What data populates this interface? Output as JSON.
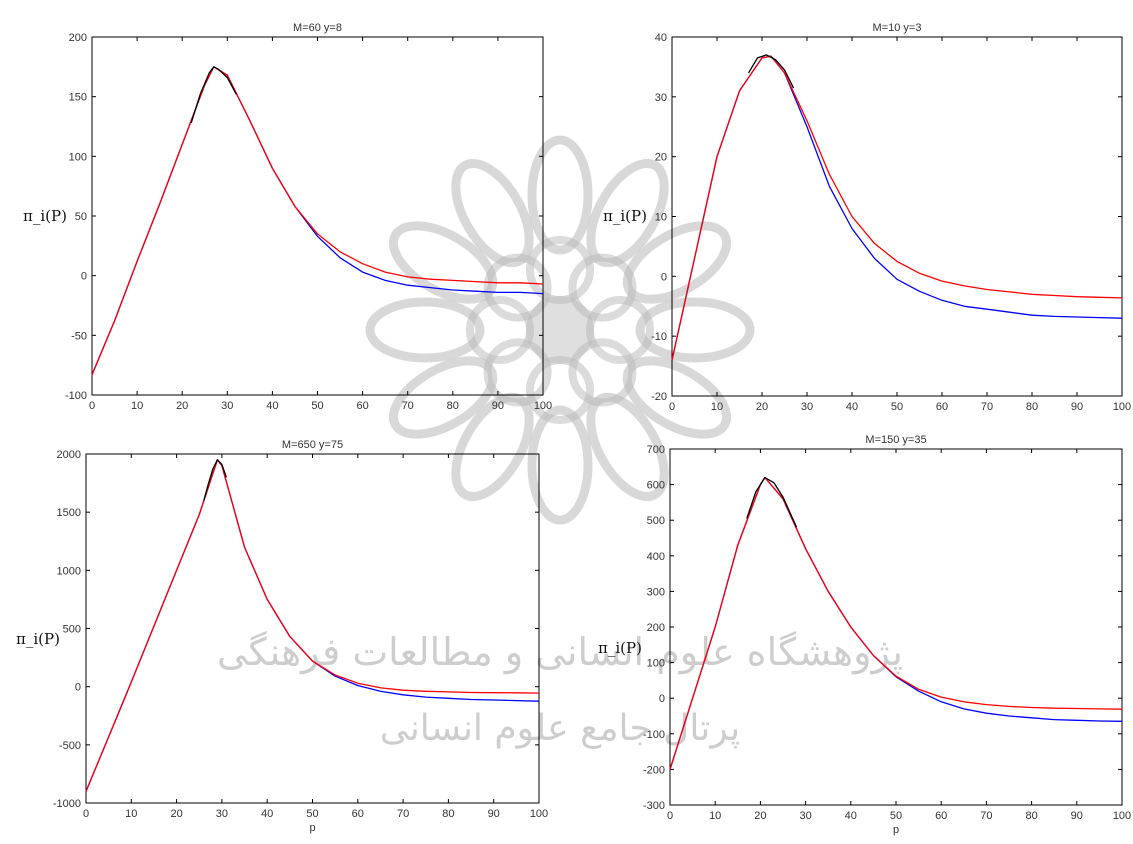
{
  "chart_data": [
    {
      "type": "line",
      "title": "M=60  y=8",
      "ylabel": "π_i(P)",
      "xlabel": "",
      "xlim": [
        0,
        100
      ],
      "ylim": [
        -100,
        200
      ],
      "xticks": [
        0,
        10,
        20,
        30,
        40,
        50,
        60,
        70,
        80,
        90,
        100
      ],
      "yticks": [
        -100,
        -50,
        0,
        50,
        100,
        150,
        200
      ],
      "series": [
        {
          "color": "#0000ff",
          "x": [
            0,
            5,
            10,
            15,
            20,
            25,
            27,
            30,
            35,
            40,
            45,
            50,
            55,
            60,
            65,
            70,
            75,
            80,
            85,
            90,
            95,
            100
          ],
          "y": [
            -83,
            -38,
            12,
            60,
            110,
            160,
            175,
            168,
            130,
            90,
            58,
            33,
            15,
            3,
            -4,
            -8,
            -10,
            -12,
            -13,
            -14,
            -14,
            -15
          ]
        },
        {
          "color": "#ff0000",
          "x": [
            0,
            5,
            10,
            15,
            20,
            25,
            27,
            30,
            35,
            40,
            45,
            50,
            55,
            60,
            65,
            70,
            75,
            80,
            85,
            90,
            95,
            100
          ],
          "y": [
            -83,
            -38,
            12,
            60,
            110,
            160,
            175,
            168,
            130,
            90,
            58,
            35,
            20,
            10,
            3,
            -1,
            -3,
            -4,
            -5,
            -6,
            -6,
            -7
          ]
        },
        {
          "color": "#000000",
          "x": [
            22,
            24,
            26,
            27,
            28,
            30,
            32
          ],
          "y": [
            128,
            152,
            170,
            175,
            173,
            166,
            152
          ]
        }
      ]
    },
    {
      "type": "line",
      "title": "M=10  y=3",
      "ylabel": "π_i(P)",
      "xlabel": "",
      "xlim": [
        0,
        100
      ],
      "ylim": [
        -20,
        40
      ],
      "xticks": [
        0,
        10,
        20,
        30,
        40,
        50,
        60,
        70,
        80,
        90,
        100
      ],
      "yticks": [
        -20,
        -10,
        0,
        10,
        20,
        30,
        40
      ],
      "series": [
        {
          "color": "#0000ff",
          "x": [
            0,
            5,
            10,
            15,
            20,
            22,
            25,
            30,
            35,
            40,
            45,
            50,
            55,
            60,
            65,
            70,
            75,
            80,
            85,
            90,
            95,
            100
          ],
          "y": [
            -14,
            3,
            20,
            31,
            36.5,
            36.8,
            34,
            25,
            15,
            8,
            3,
            -0.5,
            -2.5,
            -4,
            -5,
            -5.5,
            -6,
            -6.5,
            -6.7,
            -6.8,
            -6.9,
            -7
          ]
        },
        {
          "color": "#ff0000",
          "x": [
            0,
            5,
            10,
            15,
            20,
            22,
            25,
            30,
            35,
            40,
            45,
            50,
            55,
            60,
            65,
            70,
            75,
            80,
            85,
            90,
            95,
            100
          ],
          "y": [
            -14,
            3,
            20,
            31,
            36.5,
            36.8,
            34,
            26,
            17,
            10,
            5.5,
            2.5,
            0.5,
            -0.8,
            -1.6,
            -2.2,
            -2.6,
            -3,
            -3.2,
            -3.4,
            -3.5,
            -3.6
          ]
        },
        {
          "color": "#000000",
          "x": [
            17,
            19,
            21,
            23,
            25,
            27
          ],
          "y": [
            34,
            36.5,
            37,
            36.2,
            34.5,
            31.5
          ]
        }
      ]
    },
    {
      "type": "line",
      "title": "M=650  y=75",
      "ylabel": "π_i(P)",
      "xlabel": "p",
      "xlim": [
        0,
        100
      ],
      "ylim": [
        -1000,
        2000
      ],
      "xticks": [
        0,
        10,
        20,
        30,
        40,
        50,
        60,
        70,
        80,
        90,
        100
      ],
      "yticks": [
        -1000,
        -500,
        0,
        500,
        1000,
        1500,
        2000
      ],
      "series": [
        {
          "color": "#0000ff",
          "x": [
            0,
            5,
            10,
            15,
            20,
            25,
            29,
            30,
            35,
            40,
            45,
            50,
            55,
            60,
            65,
            70,
            75,
            80,
            85,
            90,
            95,
            100
          ],
          "y": [
            -900,
            -430,
            40,
            520,
            1000,
            1480,
            1950,
            1900,
            1200,
            750,
            430,
            220,
            90,
            10,
            -40,
            -70,
            -90,
            -100,
            -110,
            -115,
            -120,
            -125
          ]
        },
        {
          "color": "#ff0000",
          "x": [
            0,
            5,
            10,
            15,
            20,
            25,
            29,
            30,
            35,
            40,
            45,
            50,
            55,
            60,
            65,
            70,
            75,
            80,
            85,
            90,
            95,
            100
          ],
          "y": [
            -900,
            -430,
            40,
            520,
            1000,
            1480,
            1950,
            1900,
            1200,
            750,
            430,
            220,
            100,
            30,
            -10,
            -30,
            -40,
            -45,
            -50,
            -52,
            -53,
            -55
          ]
        },
        {
          "color": "#000000",
          "x": [
            26,
            27,
            28,
            29,
            30,
            31
          ],
          "y": [
            1600,
            1740,
            1870,
            1950,
            1910,
            1800
          ]
        }
      ]
    },
    {
      "type": "line",
      "title": "M=150  y=35",
      "ylabel": "π_i(P)",
      "xlabel": "p",
      "xlim": [
        0,
        100
      ],
      "ylim": [
        -300,
        700
      ],
      "xticks": [
        0,
        10,
        20,
        30,
        40,
        50,
        60,
        70,
        80,
        90,
        100
      ],
      "yticks": [
        -300,
        -200,
        -100,
        0,
        100,
        200,
        300,
        400,
        500,
        600,
        700
      ],
      "series": [
        {
          "color": "#0000ff",
          "x": [
            0,
            5,
            10,
            15,
            20,
            21,
            25,
            30,
            35,
            40,
            45,
            50,
            55,
            60,
            65,
            70,
            75,
            80,
            85,
            90,
            95,
            100
          ],
          "y": [
            -200,
            0,
            200,
            430,
            600,
            620,
            560,
            420,
            300,
            200,
            120,
            60,
            20,
            -10,
            -30,
            -42,
            -50,
            -55,
            -60,
            -62,
            -64,
            -65
          ]
        },
        {
          "color": "#ff0000",
          "x": [
            0,
            5,
            10,
            15,
            20,
            21,
            25,
            30,
            35,
            40,
            45,
            50,
            55,
            60,
            65,
            70,
            75,
            80,
            85,
            90,
            95,
            100
          ],
          "y": [
            -200,
            0,
            200,
            430,
            600,
            620,
            560,
            420,
            300,
            200,
            120,
            62,
            25,
            3,
            -10,
            -18,
            -23,
            -26,
            -28,
            -29,
            -30,
            -31
          ]
        },
        {
          "color": "#000000",
          "x": [
            17,
            19,
            21,
            23,
            25,
            28
          ],
          "y": [
            505,
            580,
            620,
            605,
            565,
            480
          ]
        }
      ]
    }
  ],
  "watermark": {
    "line1": "پژوهشگاه علوم انسانی و مطالعات فرهنگی",
    "line2": "پرتال جامع علوم انسانی",
    "color": "#b8b8b8"
  }
}
